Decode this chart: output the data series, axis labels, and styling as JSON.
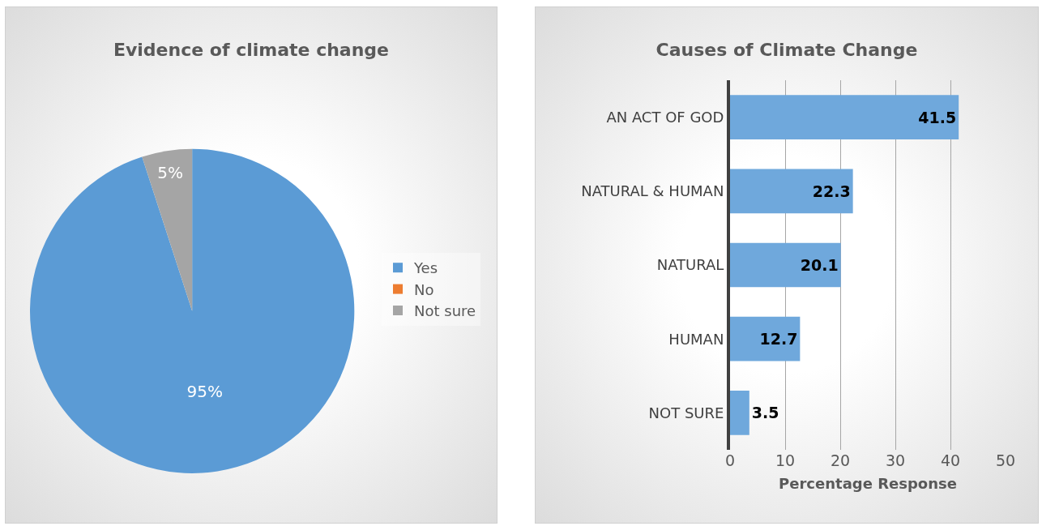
{
  "chart_data": [
    {
      "type": "pie",
      "title": "Evidence of climate change",
      "categories": [
        "Yes",
        "No",
        "Not sure"
      ],
      "values": [
        95,
        0,
        5
      ],
      "colors": [
        "#5b9bd5",
        "#ed7d31",
        "#a5a5a5"
      ],
      "value_labels": [
        "95%",
        null,
        "5%"
      ],
      "legend": "right"
    },
    {
      "type": "bar",
      "orientation": "horizontal",
      "title": "Causes of Climate Change",
      "xlabel": "Percentage Response",
      "categories": [
        "AN ACT OF GOD",
        "NATURAL & HUMAN",
        "NATURAL",
        "HUMAN",
        "NOT SURE"
      ],
      "values": [
        41.5,
        22.3,
        20.1,
        12.7,
        3.5
      ],
      "color": "#6fa8dc",
      "xlim": [
        0,
        50
      ],
      "xticks": [
        0,
        10,
        20,
        30,
        40,
        50
      ],
      "grid": "x",
      "data_labels": true,
      "legend": false
    }
  ]
}
